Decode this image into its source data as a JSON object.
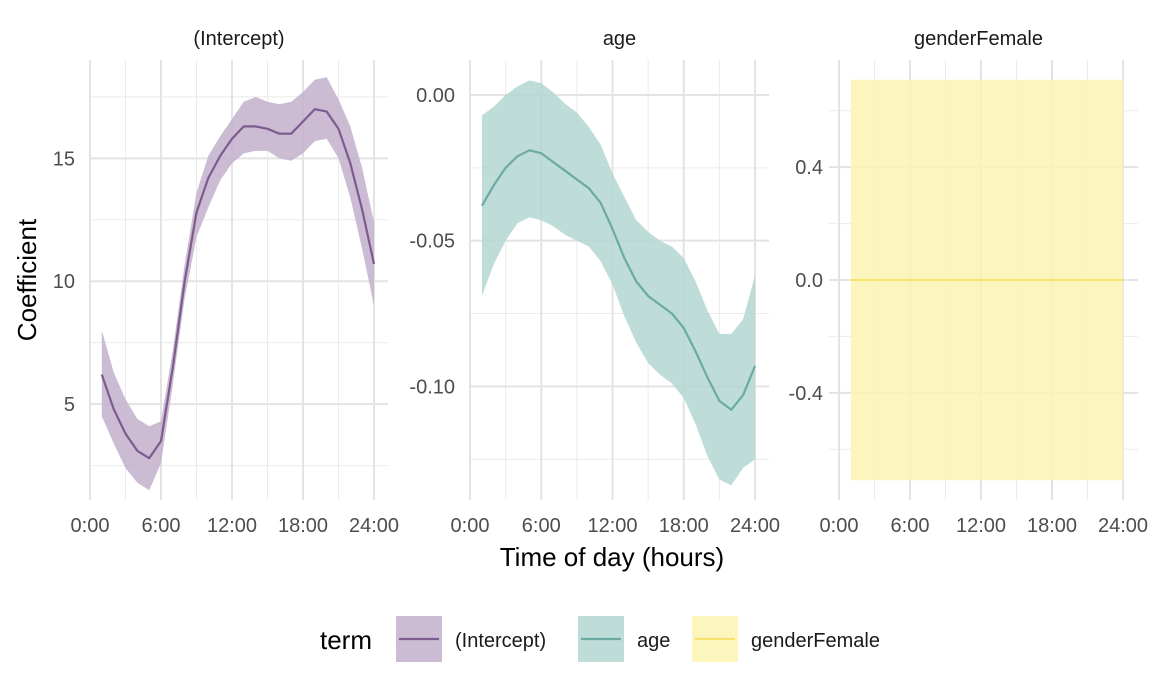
{
  "chart_data": {
    "type": "line",
    "facet_variable": "term",
    "xlabel": "Time of day (hours)",
    "ylabel": "Coefficient",
    "x_tick_labels": [
      "0:00",
      "6:00",
      "12:00",
      "18:00",
      "24:00"
    ],
    "x_tick_values": [
      0,
      6,
      12,
      18,
      24
    ],
    "xlim": [
      0,
      24
    ],
    "grid": true,
    "legend": {
      "title": "term",
      "position": "bottom",
      "entries": [
        "(Intercept)",
        "age",
        "genderFemale"
      ]
    },
    "panels": [
      {
        "name": "(Intercept)",
        "color": "#7b5c8c",
        "fill": "#c2b0cc",
        "ylim": [
          1.1,
          19.0
        ],
        "y_ticks": [
          5,
          10,
          15
        ],
        "y_tick_labels": [
          "5",
          "10",
          "15"
        ],
        "x": [
          1,
          2,
          3,
          4,
          5,
          6,
          7,
          8,
          9,
          10,
          11,
          12,
          13,
          14,
          15,
          16,
          17,
          18,
          19,
          20,
          21,
          22,
          23,
          24
        ],
        "y": [
          6.2,
          4.8,
          3.8,
          3.1,
          2.8,
          3.5,
          6.5,
          10.0,
          12.8,
          14.2,
          15.1,
          15.8,
          16.3,
          16.3,
          16.2,
          16.0,
          16.0,
          16.5,
          17.0,
          16.9,
          16.2,
          14.8,
          12.9,
          10.7
        ],
        "lower": [
          4.5,
          3.4,
          2.4,
          1.8,
          1.5,
          2.6,
          5.8,
          9.3,
          11.8,
          13.0,
          14.1,
          14.8,
          15.2,
          15.3,
          15.3,
          15.0,
          14.9,
          15.2,
          15.7,
          15.8,
          15.0,
          13.4,
          11.3,
          9.0
        ],
        "upper": [
          8.0,
          6.3,
          5.2,
          4.4,
          4.1,
          4.3,
          7.2,
          10.7,
          13.6,
          15.1,
          15.9,
          16.6,
          17.3,
          17.5,
          17.3,
          17.2,
          17.3,
          17.7,
          18.2,
          18.3,
          17.4,
          16.3,
          14.6,
          12.4
        ]
      },
      {
        "name": "age",
        "color": "#6aaba2",
        "fill": "#b3d6d1",
        "ylim": [
          -0.139,
          0.012
        ],
        "y_ticks": [
          -0.1,
          -0.05,
          0
        ],
        "y_tick_labels": [
          "-0.10",
          "-0.05",
          "0.00"
        ],
        "x": [
          1,
          2,
          3,
          4,
          5,
          6,
          7,
          8,
          9,
          10,
          11,
          12,
          13,
          14,
          15,
          16,
          17,
          18,
          19,
          20,
          21,
          22,
          23,
          24
        ],
        "y": [
          -0.038,
          -0.031,
          -0.025,
          -0.021,
          -0.019,
          -0.02,
          -0.023,
          -0.026,
          -0.029,
          -0.032,
          -0.037,
          -0.046,
          -0.056,
          -0.064,
          -0.069,
          -0.072,
          -0.075,
          -0.08,
          -0.088,
          -0.097,
          -0.105,
          -0.108,
          -0.103,
          -0.093
        ],
        "lower": [
          -0.069,
          -0.058,
          -0.05,
          -0.044,
          -0.042,
          -0.043,
          -0.045,
          -0.048,
          -0.05,
          -0.052,
          -0.057,
          -0.065,
          -0.076,
          -0.085,
          -0.092,
          -0.096,
          -0.099,
          -0.104,
          -0.113,
          -0.124,
          -0.132,
          -0.134,
          -0.128,
          -0.125
        ],
        "upper": [
          -0.007,
          -0.004,
          0.0,
          0.003,
          0.005,
          0.004,
          0.001,
          -0.003,
          -0.006,
          -0.011,
          -0.017,
          -0.027,
          -0.035,
          -0.043,
          -0.047,
          -0.05,
          -0.052,
          -0.056,
          -0.064,
          -0.074,
          -0.082,
          -0.082,
          -0.077,
          -0.062
        ]
      },
      {
        "name": "genderFemale",
        "color": "#f5e36e",
        "fill": "#fcf5b3",
        "ylim": [
          -0.78,
          0.78
        ],
        "y_ticks": [
          -0.4,
          0,
          0.4
        ],
        "y_tick_labels": [
          "-0.4",
          "0.0",
          "0.4"
        ],
        "x": [
          1,
          24
        ],
        "y": [
          0.0,
          0.0
        ],
        "lower": [
          -0.71,
          -0.71
        ],
        "upper": [
          0.71,
          0.71
        ]
      }
    ]
  }
}
